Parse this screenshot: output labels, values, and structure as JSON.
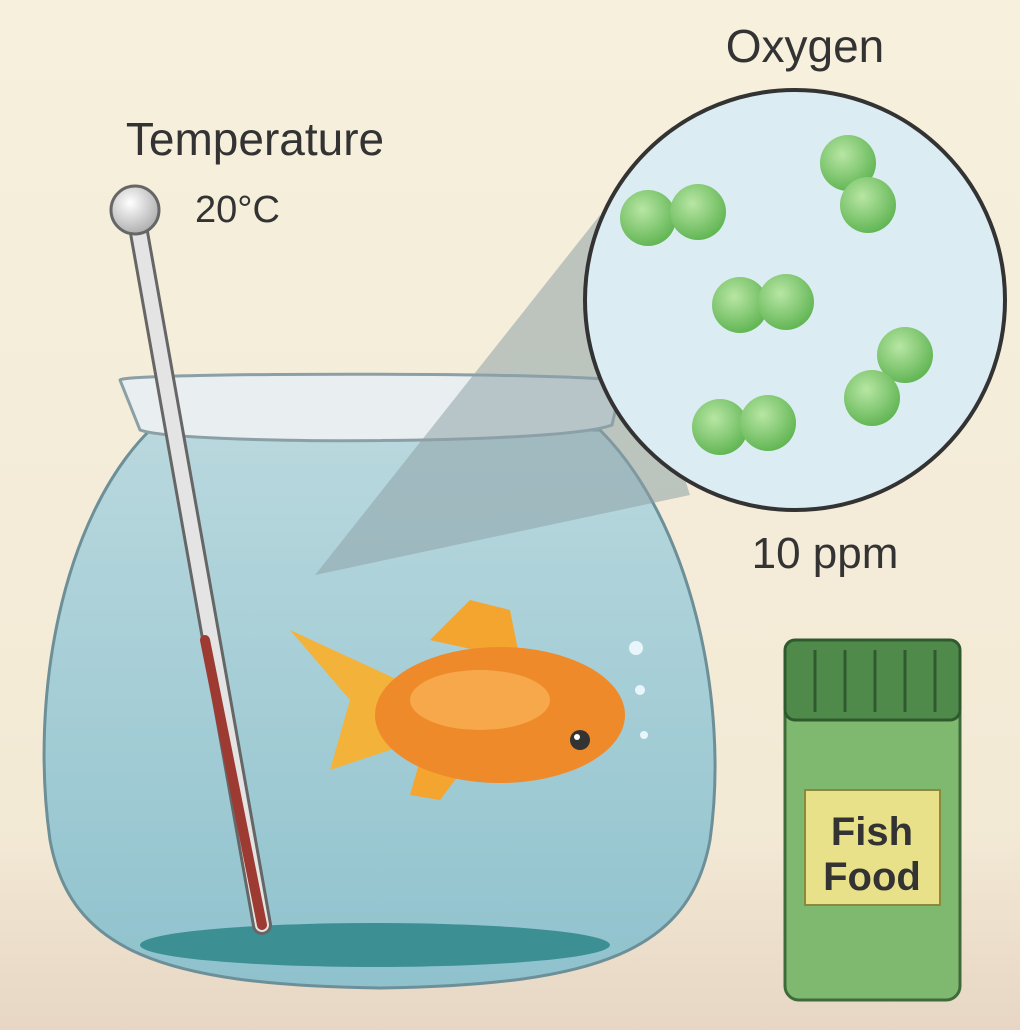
{
  "labels": {
    "temperature": "Temperature",
    "temperature_value": "20°C",
    "oxygen": "Oxygen",
    "oxygen_value": "10 ppm",
    "jar_label": [
      "Fish",
      "Food"
    ]
  }
}
